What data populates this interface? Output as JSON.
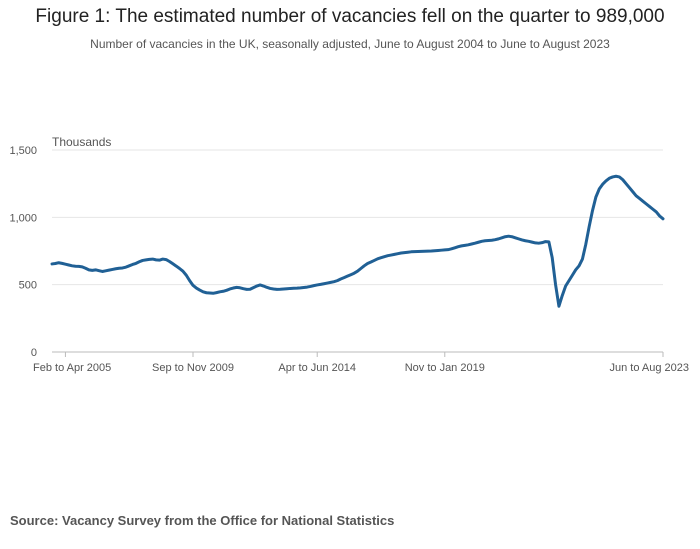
{
  "chart_data": {
    "type": "line",
    "title": "Figure 1: The estimated number of vacancies fell on the quarter to 989,000",
    "subtitle": "Number of vacancies in the UK, seasonally adjusted, June to August 2004 to June to August 2023",
    "ylabel": "Thousands",
    "xlabel": "",
    "ylim": [
      0,
      1500
    ],
    "yticks": [
      0,
      500,
      1000,
      1500
    ],
    "ytick_labels": [
      "0",
      "500",
      "1,000",
      "1,500"
    ],
    "xtick_labels": [
      "Feb to Apr 2005",
      "Sep to Nov 2009",
      "Apr to Jun 2014",
      "Nov to Jan 2019",
      "Jun to Aug 2023"
    ],
    "grid": true,
    "legend": "none",
    "line_color": "#206095",
    "series": [
      {
        "values": [
          654,
          657,
          663,
          658,
          652,
          646,
          640,
          637,
          636,
          632,
          622,
          610,
          606,
          610,
          604,
          598,
          603,
          608,
          613,
          618,
          622,
          624,
          630,
          640,
          650,
          658,
          670,
          680,
          684,
          688,
          690,
          684,
          682,
          690,
          686,
          672,
          655,
          638,
          620,
          600,
          570,
          530,
          495,
          475,
          460,
          447,
          440,
          438,
          436,
          441,
          447,
          451,
          458,
          468,
          475,
          480,
          477,
          470,
          465,
          466,
          478,
          490,
          498,
          490,
          480,
          472,
          468,
          465,
          466,
          468,
          470,
          472,
          473,
          474,
          476,
          479,
          482,
          487,
          493,
          498,
          502,
          507,
          512,
          517,
          522,
          530,
          542,
          552,
          563,
          574,
          585,
          600,
          620,
          640,
          657,
          668,
          680,
          692,
          700,
          708,
          715,
          720,
          725,
          730,
          735,
          738,
          741,
          744,
          745,
          746,
          747,
          748,
          749,
          750,
          752,
          754,
          756,
          758,
          760,
          766,
          774,
          782,
          788,
          792,
          796,
          802,
          808,
          815,
          822,
          826,
          828,
          830,
          834,
          840,
          848,
          856,
          860,
          856,
          848,
          840,
          832,
          826,
          822,
          816,
          810,
          808,
          812,
          820,
          818,
          700,
          500,
          340,
          420,
          490,
          530,
          570,
          610,
          640,
          690,
          800,
          930,
          1050,
          1150,
          1210,
          1245,
          1270,
          1290,
          1300,
          1305,
          1300,
          1280,
          1250,
          1220,
          1190,
          1160,
          1140,
          1120,
          1100,
          1080,
          1060,
          1040,
          1010,
          989
        ]
      }
    ]
  },
  "source": "Source: Vacancy Survey from the Office for National Statistics"
}
